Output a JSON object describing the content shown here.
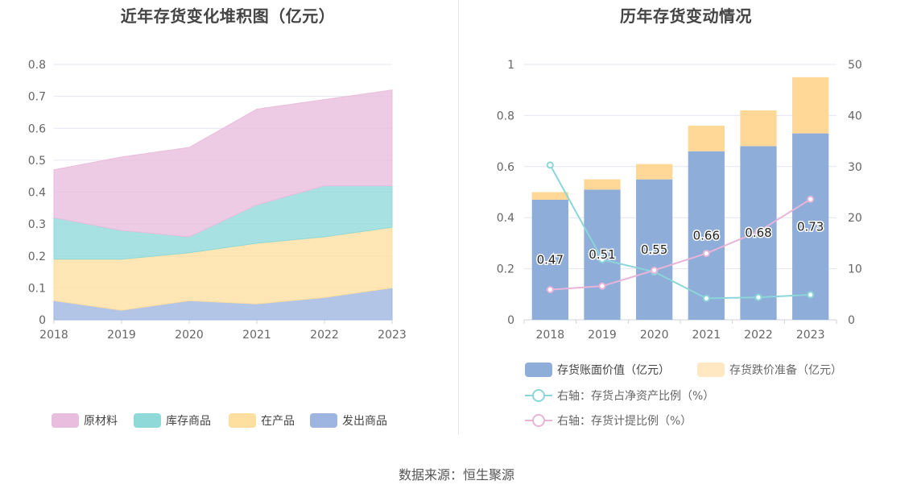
{
  "source_text": "数据来源：恒生聚源",
  "colors": {
    "raw": "#e9bddd",
    "stock": "#8fd9d8",
    "wip": "#ffdf9f",
    "shipped": "#9db5e0",
    "bar_main": "#8eadd9",
    "bar_top": "#ffd898",
    "line_cyan": "#8ad6d8",
    "line_pink": "#e8b5d9",
    "grid": "#e3e6ef"
  },
  "chart_data": [
    {
      "type": "area",
      "title": "近年存货变化堆积图（亿元）",
      "x": [
        "2018",
        "2019",
        "2020",
        "2021",
        "2022",
        "2023"
      ],
      "ylim": [
        0,
        0.8
      ],
      "yticks": [
        "0",
        "0.1",
        "0.2",
        "0.3",
        "0.4",
        "0.5",
        "0.6",
        "0.7",
        "0.8"
      ],
      "stacked": true,
      "series": [
        {
          "name": "发出商品",
          "values": [
            0.06,
            0.03,
            0.06,
            0.05,
            0.07,
            0.1
          ]
        },
        {
          "name": "在产品",
          "values": [
            0.13,
            0.16,
            0.15,
            0.19,
            0.19,
            0.19
          ]
        },
        {
          "name": "库存商品",
          "values": [
            0.13,
            0.09,
            0.05,
            0.12,
            0.16,
            0.13
          ]
        },
        {
          "name": "原材料",
          "values": [
            0.15,
            0.23,
            0.28,
            0.3,
            0.27,
            0.3
          ]
        }
      ],
      "legend": [
        "原材料",
        "库存商品",
        "在产品",
        "发出商品"
      ],
      "legend_position": "bottom"
    },
    {
      "type": "bar",
      "title": "历年存货变动情况",
      "categories": [
        "2018",
        "2019",
        "2020",
        "2021",
        "2022",
        "2023"
      ],
      "ylim": [
        0,
        1
      ],
      "yticks": [
        "0",
        "0.2",
        "0.4",
        "0.6",
        "0.8",
        "1"
      ],
      "y2lim": [
        0,
        50
      ],
      "y2ticks": [
        "0",
        "10",
        "20",
        "30",
        "40",
        "50"
      ],
      "stacked": true,
      "series": [
        {
          "name": "存货账面价值（亿元）",
          "values": [
            0.47,
            0.51,
            0.55,
            0.66,
            0.68,
            0.73
          ],
          "labels": [
            "0.47",
            "0.51",
            "0.55",
            "0.66",
            "0.68",
            "0.73"
          ]
        },
        {
          "name": "存货跌价准备（亿元）",
          "values": [
            0.03,
            0.04,
            0.06,
            0.1,
            0.14,
            0.22
          ]
        }
      ],
      "lines": [
        {
          "name": "右轴：存货占净资产比例（%）",
          "axis": "right",
          "values": [
            30.3,
            11.8,
            9.4,
            4.2,
            4.4,
            4.9
          ]
        },
        {
          "name": "右轴：存货计提比例（%）",
          "axis": "right",
          "values": [
            5.9,
            6.6,
            9.7,
            13.0,
            17.3,
            23.6
          ]
        }
      ],
      "legend_position": "bottom"
    }
  ]
}
